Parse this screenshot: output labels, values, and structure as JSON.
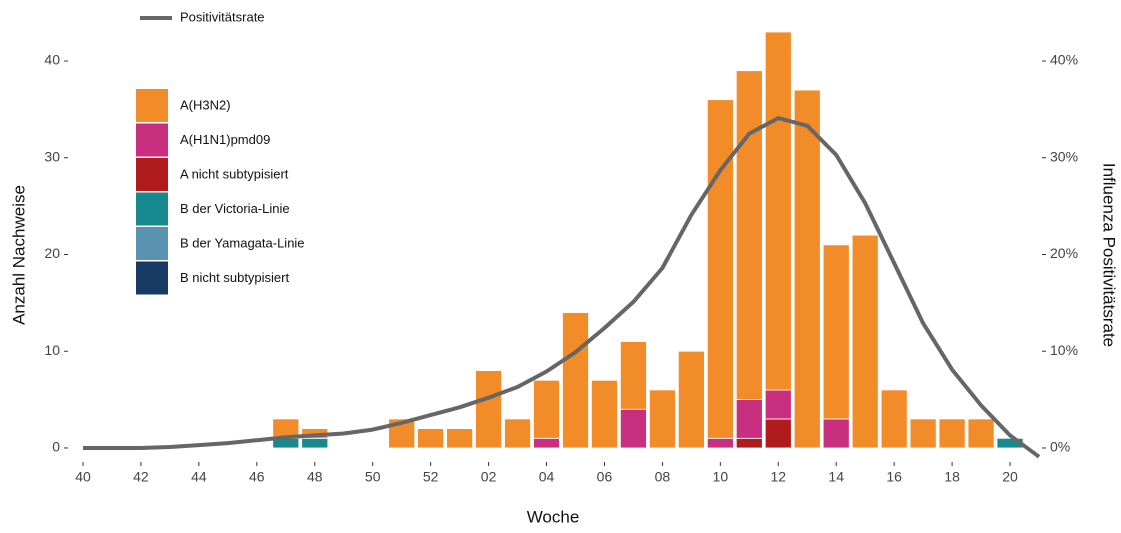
{
  "chart_data": {
    "type": "bar",
    "stacked": true,
    "x_label": "Woche",
    "y_label": "Anzahl Nachweise",
    "y2_label": "Influenza Positivitätsrate",
    "categories": [
      "40",
      null,
      "42",
      null,
      "44",
      null,
      "46",
      null,
      "48",
      null,
      "50",
      null,
      "52",
      null,
      "02",
      null,
      "04",
      null,
      "06",
      null,
      "08",
      null,
      "10",
      null,
      "12",
      null,
      "14",
      null,
      "16",
      null,
      "18",
      null,
      "20",
      null
    ],
    "series": [
      {
        "name": "A(H3N2)",
        "color": "#f28c28",
        "values": [
          0,
          0,
          0,
          0,
          0,
          0,
          0,
          2,
          1,
          0,
          0,
          3,
          2,
          2,
          8,
          3,
          6,
          14,
          7,
          7,
          6,
          10,
          35,
          34,
          37,
          37,
          18,
          22,
          6,
          3,
          3,
          3,
          0,
          0
        ]
      },
      {
        "name": "A(H1N1)pmd09",
        "color": "#c8307f",
        "values": [
          0,
          0,
          0,
          0,
          0,
          0,
          0,
          0,
          0,
          0,
          0,
          0,
          0,
          0,
          0,
          0,
          1,
          0,
          0,
          4,
          0,
          0,
          1,
          4,
          3,
          0,
          3,
          0,
          0,
          0,
          0,
          0,
          0,
          0
        ]
      },
      {
        "name": "A nicht subtypisiert",
        "color": "#b01c1c",
        "values": [
          0,
          0,
          0,
          0,
          0,
          0,
          0,
          0,
          0,
          0,
          0,
          0,
          0,
          0,
          0,
          0,
          0,
          0,
          0,
          0,
          0,
          0,
          0,
          1,
          3,
          0,
          0,
          0,
          0,
          0,
          0,
          0,
          0,
          0
        ]
      },
      {
        "name": "B der Victoria-Linie",
        "color": "#178a8f",
        "values": [
          0,
          0,
          0,
          0,
          0,
          0,
          0,
          1,
          1,
          0,
          0,
          0,
          0,
          0,
          0,
          0,
          0,
          0,
          0,
          0,
          0,
          0,
          0,
          0,
          0,
          0,
          0,
          0,
          0,
          0,
          0,
          0,
          1,
          0
        ]
      },
      {
        "name": "B der Yamagata-Linie",
        "color": "#5a93b0",
        "values": [
          0,
          0,
          0,
          0,
          0,
          0,
          0,
          0,
          0,
          0,
          0,
          0,
          0,
          0,
          0,
          0,
          0,
          0,
          0,
          0,
          0,
          0,
          0,
          0,
          0,
          0,
          0,
          0,
          0,
          0,
          0,
          0,
          0,
          0
        ]
      },
      {
        "name": "B nicht subtypisiert",
        "color": "#163a63",
        "values": [
          0,
          0,
          0,
          0,
          0,
          0,
          0,
          0,
          0,
          0,
          0,
          0,
          0,
          0,
          0,
          0,
          0,
          0,
          0,
          0,
          0,
          0,
          0,
          0,
          0,
          0,
          0,
          0,
          0,
          0,
          0,
          0,
          0,
          0
        ]
      },
      {
        "name": "Positivitätsrate",
        "color": "#666666",
        "type": "line",
        "axis": "y2",
        "values": [
          0,
          0,
          0,
          0.1,
          0.3,
          0.5,
          0.8,
          1.1,
          1.3,
          1.5,
          1.9,
          2.6,
          3.4,
          4.2,
          5.2,
          6.3,
          7.9,
          9.9,
          12.4,
          15.1,
          18.6,
          24.1,
          28.7,
          32.5,
          34.1,
          33.3,
          30.3,
          25.3,
          19.1,
          12.9,
          8.1,
          4.4,
          1.3,
          -0.9
        ]
      }
    ],
    "ylim": [
      -1.45,
      44.86
    ],
    "yticks": [
      0,
      10,
      20,
      30,
      40
    ],
    "y2lim": [
      -1.45,
      44.86
    ],
    "y2ticks": [
      {
        "value": 0,
        "label": "0%"
      },
      {
        "value": 10,
        "label": "10%"
      },
      {
        "value": 20,
        "label": "20%"
      },
      {
        "value": 30,
        "label": "30%"
      },
      {
        "value": 40,
        "label": "40%"
      }
    ],
    "grid": false
  }
}
